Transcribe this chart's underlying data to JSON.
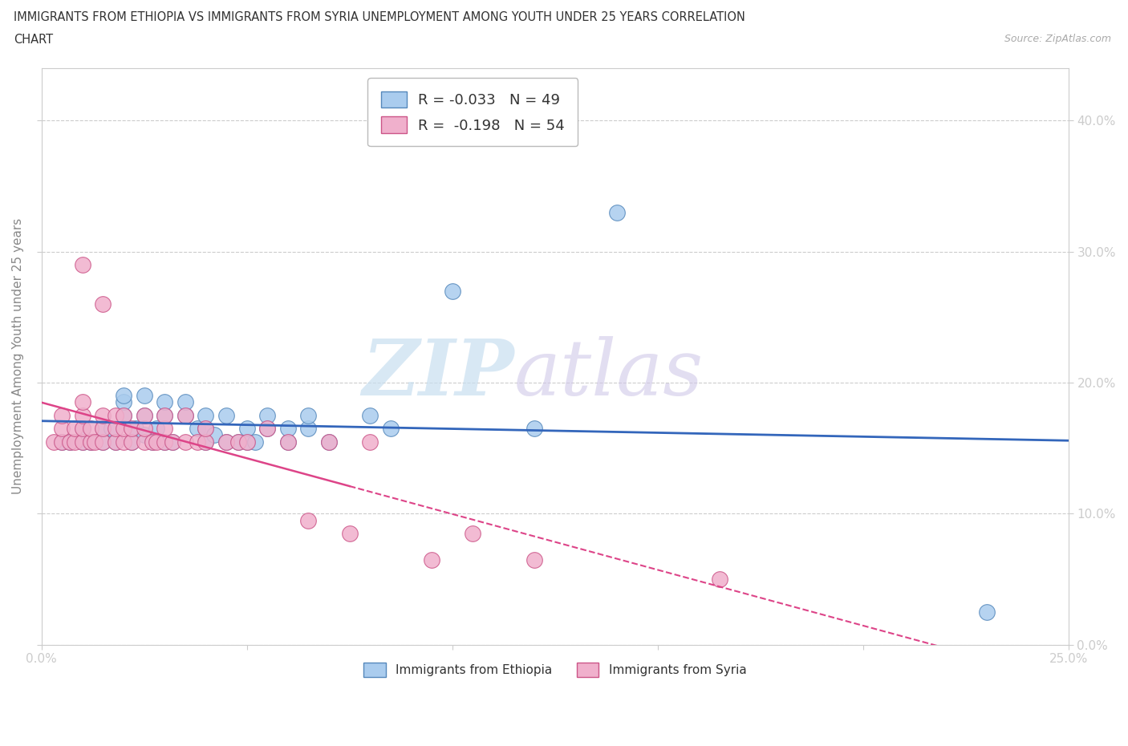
{
  "title_line1": "IMMIGRANTS FROM ETHIOPIA VS IMMIGRANTS FROM SYRIA UNEMPLOYMENT AMONG YOUTH UNDER 25 YEARS CORRELATION",
  "title_line2": "CHART",
  "source": "Source: ZipAtlas.com",
  "ylabel": "Unemployment Among Youth under 25 years",
  "xlim": [
    0.0,
    0.25
  ],
  "ylim": [
    0.0,
    0.44
  ],
  "yticks": [
    0.0,
    0.1,
    0.2,
    0.3,
    0.4
  ],
  "xticks": [
    0.0,
    0.05,
    0.1,
    0.15,
    0.2,
    0.25
  ],
  "color_ethiopia": "#aaccee",
  "color_syria": "#f0b0cc",
  "color_edge_ethiopia": "#5588bb",
  "color_edge_syria": "#cc5588",
  "color_trend_ethiopia": "#3366bb",
  "color_trend_syria": "#dd4488",
  "watermark_zip": "ZIP",
  "watermark_atlas": "atlas",
  "ethiopia_x": [
    0.005,
    0.007,
    0.01,
    0.01,
    0.012,
    0.015,
    0.015,
    0.017,
    0.018,
    0.02,
    0.02,
    0.02,
    0.022,
    0.023,
    0.025,
    0.025,
    0.025,
    0.027,
    0.028,
    0.03,
    0.03,
    0.03,
    0.032,
    0.035,
    0.035,
    0.038,
    0.04,
    0.04,
    0.04,
    0.042,
    0.045,
    0.045,
    0.048,
    0.05,
    0.05,
    0.052,
    0.055,
    0.055,
    0.06,
    0.06,
    0.065,
    0.065,
    0.07,
    0.08,
    0.085,
    0.1,
    0.12,
    0.14,
    0.23
  ],
  "ethiopia_y": [
    0.155,
    0.155,
    0.155,
    0.165,
    0.155,
    0.155,
    0.165,
    0.165,
    0.155,
    0.175,
    0.185,
    0.19,
    0.155,
    0.165,
    0.16,
    0.175,
    0.19,
    0.155,
    0.165,
    0.155,
    0.175,
    0.185,
    0.155,
    0.175,
    0.185,
    0.165,
    0.155,
    0.165,
    0.175,
    0.16,
    0.155,
    0.175,
    0.155,
    0.155,
    0.165,
    0.155,
    0.165,
    0.175,
    0.155,
    0.165,
    0.165,
    0.175,
    0.155,
    0.175,
    0.165,
    0.27,
    0.165,
    0.33,
    0.025
  ],
  "syria_x": [
    0.003,
    0.005,
    0.005,
    0.005,
    0.007,
    0.008,
    0.008,
    0.01,
    0.01,
    0.01,
    0.01,
    0.01,
    0.012,
    0.012,
    0.013,
    0.015,
    0.015,
    0.015,
    0.015,
    0.018,
    0.018,
    0.018,
    0.02,
    0.02,
    0.02,
    0.022,
    0.022,
    0.025,
    0.025,
    0.025,
    0.027,
    0.028,
    0.03,
    0.03,
    0.03,
    0.032,
    0.035,
    0.035,
    0.038,
    0.04,
    0.04,
    0.045,
    0.048,
    0.05,
    0.055,
    0.06,
    0.065,
    0.07,
    0.075,
    0.08,
    0.095,
    0.105,
    0.12,
    0.165
  ],
  "syria_y": [
    0.155,
    0.155,
    0.165,
    0.175,
    0.155,
    0.155,
    0.165,
    0.155,
    0.165,
    0.175,
    0.185,
    0.29,
    0.155,
    0.165,
    0.155,
    0.155,
    0.165,
    0.175,
    0.26,
    0.155,
    0.165,
    0.175,
    0.155,
    0.165,
    0.175,
    0.155,
    0.165,
    0.155,
    0.165,
    0.175,
    0.155,
    0.155,
    0.155,
    0.165,
    0.175,
    0.155,
    0.155,
    0.175,
    0.155,
    0.155,
    0.165,
    0.155,
    0.155,
    0.155,
    0.165,
    0.155,
    0.095,
    0.155,
    0.085,
    0.155,
    0.065,
    0.085,
    0.065,
    0.05
  ]
}
